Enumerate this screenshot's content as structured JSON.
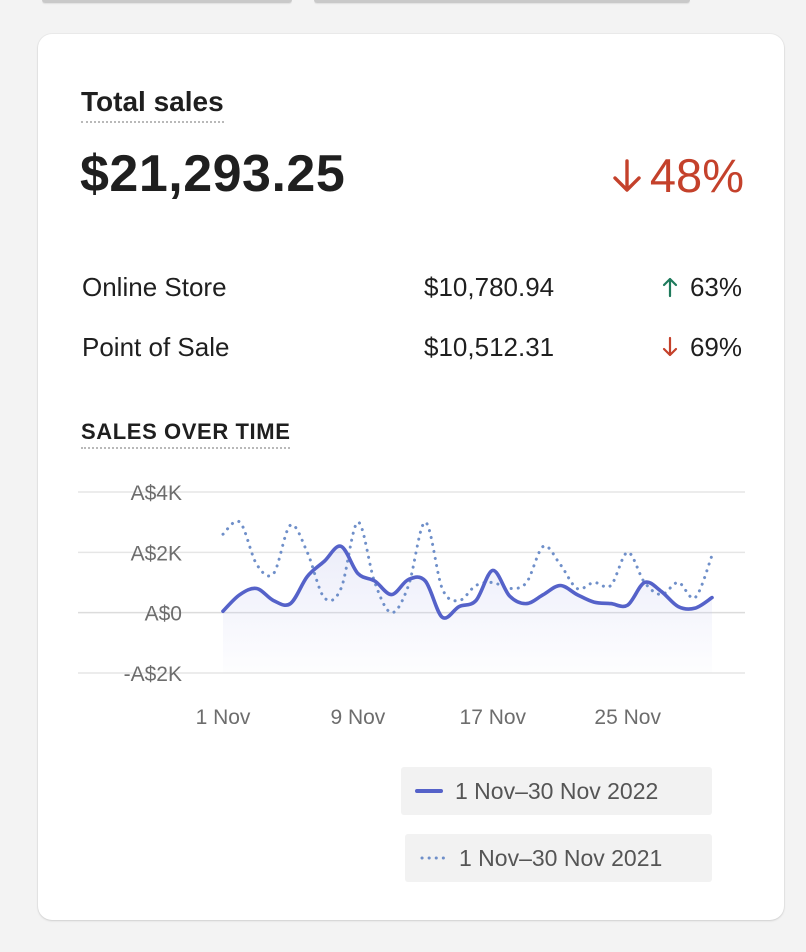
{
  "card": {
    "title": "Total sales",
    "total": "$21,293.25",
    "total_change": "48%",
    "total_change_direction": "down"
  },
  "channels": [
    {
      "name": "Online Store",
      "amount": "$10,780.94",
      "change": "63%",
      "direction": "up"
    },
    {
      "name": "Point of Sale",
      "amount": "$10,512.31",
      "change": "69%",
      "direction": "down"
    }
  ],
  "colors": {
    "down": "#c4412b",
    "up": "#1f7a5c",
    "series_current": "#5562c9",
    "series_previous": "#6f8fc9"
  },
  "sales_over_time": {
    "title": "SALES OVER TIME"
  },
  "chart_data": {
    "type": "line",
    "title": "SALES OVER TIME",
    "xlabel": "",
    "ylabel": "",
    "x_tick_labels": [
      "1 Nov",
      "9 Nov",
      "17 Nov",
      "25 Nov"
    ],
    "x_tick_days": [
      1,
      9,
      17,
      25
    ],
    "x_range": [
      1,
      30
    ],
    "y_tick_labels": [
      "A$4K",
      "A$2K",
      "A$0",
      "-A$2K"
    ],
    "y_tick_values": [
      4000,
      2000,
      0,
      -2000
    ],
    "ylim": [
      -2000,
      4000
    ],
    "grid": true,
    "legend_position": "bottom-right",
    "series": [
      {
        "name": "1 Nov–30 Nov 2022",
        "style": "solid",
        "x": [
          1,
          2,
          3,
          4,
          5,
          6,
          7,
          8,
          9,
          10,
          11,
          12,
          13,
          14,
          15,
          16,
          17,
          18,
          19,
          20,
          21,
          22,
          23,
          24,
          25,
          26,
          27,
          28,
          29,
          30
        ],
        "values": [
          50,
          600,
          800,
          400,
          300,
          1200,
          1700,
          2200,
          1300,
          1050,
          600,
          1100,
          1050,
          -150,
          200,
          400,
          1400,
          550,
          300,
          600,
          900,
          600,
          350,
          300,
          250,
          1000,
          700,
          200,
          150,
          500
        ]
      },
      {
        "name": "1 Nov–30 Nov 2021",
        "style": "dotted",
        "x": [
          1,
          2,
          3,
          4,
          5,
          6,
          7,
          8,
          9,
          10,
          11,
          12,
          13,
          14,
          15,
          16,
          17,
          18,
          19,
          20,
          21,
          22,
          23,
          24,
          25,
          26,
          27,
          28,
          29,
          30
        ],
        "values": [
          2600,
          3000,
          1600,
          1300,
          2900,
          2000,
          500,
          800,
          3000,
          1000,
          0,
          900,
          3000,
          800,
          400,
          900,
          1000,
          800,
          1000,
          2200,
          1600,
          800,
          1000,
          900,
          2000,
          1000,
          600,
          1000,
          500,
          1900
        ]
      }
    ]
  }
}
